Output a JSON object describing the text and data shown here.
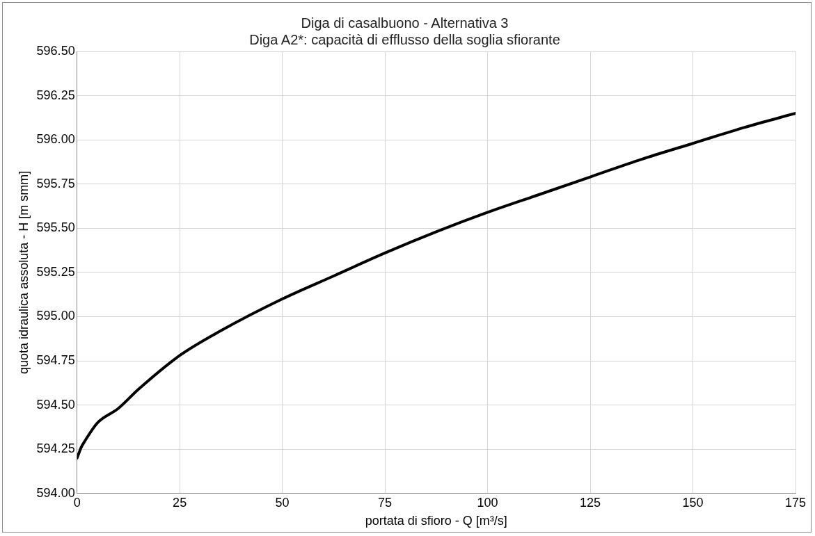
{
  "chart_data": {
    "type": "line",
    "title": "Diga di casalbuono - Alternativa 3",
    "subtitle": "Diga A2*: capacità di efflusso della soglia sfiorante",
    "xlabel": "portata di sfioro - Q [m³/s]",
    "ylabel": "quota idraulica assoluta - H [m smm]",
    "x": [
      0,
      0.5,
      1,
      2,
      5,
      10,
      15,
      25,
      35,
      50,
      62.5,
      75,
      87.5,
      100,
      112.5,
      125,
      137.5,
      150,
      162.5,
      175
    ],
    "series": [
      {
        "color": "#000000",
        "values": [
          594.2,
          594.23,
          594.26,
          594.3,
          594.4,
          594.48,
          594.59,
          594.78,
          594.92,
          595.1,
          595.23,
          595.36,
          595.48,
          595.59,
          595.69,
          595.79,
          595.89,
          595.98,
          596.07,
          596.15
        ]
      }
    ],
    "xlim": [
      0,
      175
    ],
    "xticks": [
      0,
      25,
      50,
      75,
      100,
      125,
      150,
      175
    ],
    "ylim": [
      594,
      596.5
    ],
    "yticks": [
      {
        "value": 594,
        "label": "594.00"
      },
      {
        "value": 594.25,
        "label": "594.25"
      },
      {
        "value": 594.5,
        "label": "594.50"
      },
      {
        "value": 594.75,
        "label": "594.75"
      },
      {
        "value": 595,
        "label": "595.00"
      },
      {
        "value": 595.25,
        "label": "595.25"
      },
      {
        "value": 595.5,
        "label": "595.50"
      },
      {
        "value": 595.75,
        "label": "595.75"
      },
      {
        "value": 596,
        "label": "596.00"
      },
      {
        "value": 596.25,
        "label": "596.25"
      },
      {
        "value": 596.5,
        "label": "596.50"
      }
    ],
    "grid": true,
    "marker": "none",
    "line_style": "solid"
  }
}
